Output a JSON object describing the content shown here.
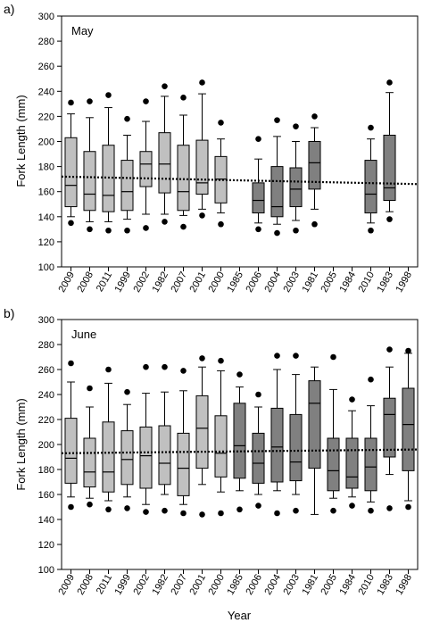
{
  "figure": {
    "xlabel": "Year"
  },
  "chart_data": [
    {
      "type": "box",
      "panel_letter": "a)",
      "title": "May",
      "ylabel": "Fork Length (mm)",
      "xlabel": "",
      "ylim": [
        100,
        300
      ],
      "yticks": [
        100,
        120,
        140,
        160,
        180,
        200,
        220,
        240,
        260,
        280,
        300
      ],
      "grid": false,
      "categories": [
        "2009",
        "2008",
        "2011",
        "1999",
        "2002",
        "1982",
        "2007",
        "2001",
        "2000",
        "1985",
        "2006",
        "2004",
        "2003",
        "1981",
        "2005",
        "1984",
        "2010",
        "1983",
        "1998"
      ],
      "group": [
        "light",
        "light",
        "light",
        "light",
        "light",
        "light",
        "light",
        "light",
        "light",
        "dark",
        "dark",
        "dark",
        "dark",
        "dark",
        "dark",
        "dark",
        "dark",
        "dark",
        "dark"
      ],
      "fill_colors": {
        "light": "#c0c0c0",
        "dark": "#808080"
      },
      "boxes": [
        {
          "whisker_low": 140,
          "q1": 148,
          "median": 165,
          "q3": 203,
          "whisker_high": 222,
          "outliers": [
            135,
            231
          ]
        },
        {
          "whisker_low": 136,
          "q1": 145,
          "median": 158,
          "q3": 192,
          "whisker_high": 219,
          "outliers": [
            130,
            232
          ]
        },
        {
          "whisker_low": 136,
          "q1": 144,
          "median": 157,
          "q3": 197,
          "whisker_high": 227,
          "outliers": [
            129,
            237
          ]
        },
        {
          "whisker_low": 138,
          "q1": 145,
          "median": 160,
          "q3": 185,
          "whisker_high": 205,
          "outliers": [
            129,
            218
          ]
        },
        {
          "whisker_low": 142,
          "q1": 164,
          "median": 182,
          "q3": 192,
          "whisker_high": 216,
          "outliers": [
            131,
            232
          ]
        },
        {
          "whisker_low": 142,
          "q1": 159,
          "median": 182,
          "q3": 207,
          "whisker_high": 236,
          "outliers": [
            136,
            244
          ]
        },
        {
          "whisker_low": 141,
          "q1": 145,
          "median": 160,
          "q3": 197,
          "whisker_high": 221,
          "outliers": [
            132,
            235
          ]
        },
        {
          "whisker_low": 146,
          "q1": 158,
          "median": 167,
          "q3": 201,
          "whisker_high": 238,
          "outliers": [
            141,
            247
          ]
        },
        {
          "whisker_low": 143,
          "q1": 151,
          "median": 170,
          "q3": 188,
          "whisker_high": 202,
          "outliers": [
            134,
            215
          ]
        },
        null,
        {
          "whisker_low": 135,
          "q1": 143,
          "median": 153,
          "q3": 167,
          "whisker_high": 186,
          "outliers": [
            130,
            202
          ]
        },
        {
          "whisker_low": 134,
          "q1": 140,
          "median": 148,
          "q3": 180,
          "whisker_high": 204,
          "outliers": [
            127,
            217
          ]
        },
        {
          "whisker_low": 137,
          "q1": 148,
          "median": 162,
          "q3": 179,
          "whisker_high": 200,
          "outliers": [
            129,
            212
          ]
        },
        {
          "whisker_low": 146,
          "q1": 162,
          "median": 183,
          "q3": 200,
          "whisker_high": 211,
          "outliers": [
            134,
            220
          ]
        },
        null,
        null,
        {
          "whisker_low": 135,
          "q1": 143,
          "median": 158,
          "q3": 185,
          "whisker_high": 202,
          "outliers": [
            129,
            211
          ]
        },
        {
          "whisker_low": 144,
          "q1": 153,
          "median": 163,
          "q3": 205,
          "whisker_high": 239,
          "outliers": [
            138,
            247
          ]
        },
        null
      ],
      "reference_line": {
        "y_start": 172,
        "y_end": 166,
        "style": "dotted"
      }
    },
    {
      "type": "box",
      "panel_letter": "b)",
      "title": "June",
      "ylabel": "Fork Length (mm)",
      "xlabel": "Year",
      "ylim": [
        100,
        300
      ],
      "yticks": [
        100,
        120,
        140,
        160,
        180,
        200,
        220,
        240,
        260,
        280,
        300
      ],
      "grid": false,
      "categories": [
        "2009",
        "2008",
        "2011",
        "1999",
        "2002",
        "1982",
        "2007",
        "2001",
        "2000",
        "1985",
        "2006",
        "2004",
        "2003",
        "1981",
        "2005",
        "1984",
        "2010",
        "1983",
        "1998"
      ],
      "group": [
        "light",
        "light",
        "light",
        "light",
        "light",
        "light",
        "light",
        "light",
        "light",
        "dark",
        "dark",
        "dark",
        "dark",
        "dark",
        "dark",
        "dark",
        "dark",
        "dark",
        "dark"
      ],
      "fill_colors": {
        "light": "#c0c0c0",
        "dark": "#808080"
      },
      "boxes": [
        {
          "whisker_low": 158,
          "q1": 169,
          "median": 189,
          "q3": 221,
          "whisker_high": 250,
          "outliers": [
            150,
            265
          ]
        },
        {
          "whisker_low": 157,
          "q1": 166,
          "median": 178,
          "q3": 205,
          "whisker_high": 230,
          "outliers": [
            152,
            245
          ]
        },
        {
          "whisker_low": 155,
          "q1": 162,
          "median": 178,
          "q3": 218,
          "whisker_high": 249,
          "outliers": [
            148,
            260
          ]
        },
        {
          "whisker_low": 158,
          "q1": 168,
          "median": 188,
          "q3": 211,
          "whisker_high": 232,
          "outliers": [
            149,
            242
          ]
        },
        {
          "whisker_low": 152,
          "q1": 165,
          "median": 191,
          "q3": 214,
          "whisker_high": 241,
          "outliers": [
            146,
            262
          ]
        },
        {
          "whisker_low": 160,
          "q1": 168,
          "median": 185,
          "q3": 215,
          "whisker_high": 242,
          "outliers": [
            147,
            262
          ]
        },
        {
          "whisker_low": 152,
          "q1": 159,
          "median": 181,
          "q3": 209,
          "whisker_high": 243,
          "outliers": [
            145,
            259
          ]
        },
        {
          "whisker_low": 168,
          "q1": 181,
          "median": 213,
          "q3": 239,
          "whisker_high": 262,
          "outliers": [
            144,
            269
          ]
        },
        {
          "whisker_low": 162,
          "q1": 174,
          "median": 193,
          "q3": 223,
          "whisker_high": 259,
          "outliers": [
            145,
            267
          ]
        },
        {
          "whisker_low": 163,
          "q1": 173,
          "median": 199,
          "q3": 233,
          "whisker_high": 246,
          "outliers": [
            148,
            256
          ]
        },
        {
          "whisker_low": 160,
          "q1": 169,
          "median": 185,
          "q3": 209,
          "whisker_high": 230,
          "outliers": [
            151,
            240
          ]
        },
        {
          "whisker_low": 163,
          "q1": 170,
          "median": 198,
          "q3": 229,
          "whisker_high": 260,
          "outliers": [
            145,
            271
          ]
        },
        {
          "whisker_low": 160,
          "q1": 171,
          "median": 186,
          "q3": 224,
          "whisker_high": 256,
          "outliers": [
            147,
            271
          ]
        },
        {
          "whisker_low": 144,
          "q1": 181,
          "median": 233,
          "q3": 251,
          "whisker_high": 262,
          "outliers": []
        },
        {
          "whisker_low": 157,
          "q1": 163,
          "median": 179,
          "q3": 205,
          "whisker_high": 244,
          "outliers": [
            147,
            270
          ]
        },
        {
          "whisker_low": 158,
          "q1": 165,
          "median": 174,
          "q3": 205,
          "whisker_high": 227,
          "outliers": [
            151,
            236
          ]
        },
        {
          "whisker_low": 154,
          "q1": 163,
          "median": 182,
          "q3": 205,
          "whisker_high": 231,
          "outliers": [
            147,
            252
          ]
        },
        {
          "whisker_low": 176,
          "q1": 190,
          "median": 224,
          "q3": 237,
          "whisker_high": 262,
          "outliers": [
            149,
            276
          ]
        },
        {
          "whisker_low": 155,
          "q1": 179,
          "median": 216,
          "q3": 245,
          "whisker_high": 273,
          "outliers": [
            150,
            275
          ]
        }
      ],
      "reference_line": {
        "y_start": 193,
        "y_end": 196,
        "style": "dotted"
      }
    }
  ]
}
